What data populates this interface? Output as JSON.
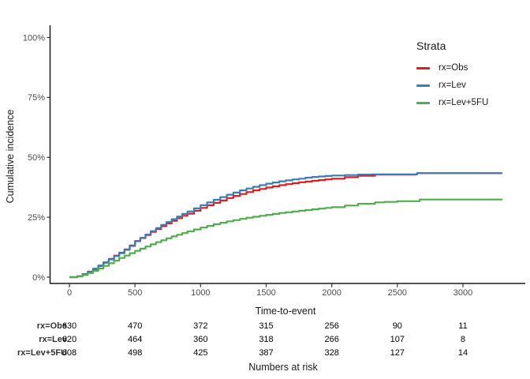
{
  "figure": {
    "y_axis_title": "Cumulative incidence",
    "x_axis_title": "Time-to-event"
  },
  "colors": {
    "red": "#E41A1C",
    "blue": "#377EB8",
    "green": "#4DAF4A",
    "axis_line": "#1a1a1a",
    "tick_mark": "#333333",
    "tick_label": "#4d4d4d",
    "risk_row_label": "#333333",
    "risk_value": "#000000"
  },
  "chart_data": {
    "type": "line",
    "subtype": "step-cumulative-incidence",
    "title": "",
    "xlabel": "Time-to-event",
    "ylabel": "Cumulative incidence",
    "xlim": [
      0,
      3400
    ],
    "ylim_percent": [
      0,
      100
    ],
    "grid": false,
    "x_ticks": [
      0,
      500,
      1000,
      1500,
      2000,
      2500,
      3000
    ],
    "y_ticks": [
      0,
      25,
      50,
      75,
      100
    ],
    "y_tick_labels": [
      "0%",
      "25%",
      "50%",
      "75%",
      "100%"
    ],
    "legend": {
      "title": "Strata",
      "position": "right-top"
    },
    "series": [
      {
        "name": "rx=Obs",
        "color": "#E41A1C",
        "points": [
          [
            0,
            0
          ],
          [
            60,
            0.4
          ],
          [
            100,
            1.3
          ],
          [
            140,
            2.3
          ],
          [
            180,
            3.5
          ],
          [
            220,
            4.8
          ],
          [
            260,
            6.2
          ],
          [
            300,
            7.6
          ],
          [
            340,
            9
          ],
          [
            380,
            10.2
          ],
          [
            420,
            11.6
          ],
          [
            460,
            13.2
          ],
          [
            500,
            15.1
          ],
          [
            540,
            16.3
          ],
          [
            580,
            17.6
          ],
          [
            620,
            18.9
          ],
          [
            660,
            20.1
          ],
          [
            700,
            21.3
          ],
          [
            740,
            22.4
          ],
          [
            780,
            23.5
          ],
          [
            820,
            24.6
          ],
          [
            860,
            25.6
          ],
          [
            900,
            26.5
          ],
          [
            950,
            27.7
          ],
          [
            1000,
            28.9
          ],
          [
            1050,
            30
          ],
          [
            1100,
            31
          ],
          [
            1150,
            32
          ],
          [
            1200,
            33
          ],
          [
            1250,
            33.9
          ],
          [
            1300,
            34.7
          ],
          [
            1350,
            35.5
          ],
          [
            1400,
            36.2
          ],
          [
            1450,
            36.8
          ],
          [
            1500,
            37.4
          ],
          [
            1550,
            37.9
          ],
          [
            1600,
            38.4
          ],
          [
            1650,
            38.8
          ],
          [
            1700,
            39.2
          ],
          [
            1750,
            39.6
          ],
          [
            1800,
            39.9
          ],
          [
            1850,
            40.2
          ],
          [
            1900,
            40.5
          ],
          [
            1950,
            40.8
          ],
          [
            2000,
            41.1
          ],
          [
            2100,
            41.7
          ],
          [
            2200,
            42.3
          ],
          [
            2330,
            42.8
          ],
          [
            2640,
            42.9
          ],
          [
            2650,
            43.4
          ],
          [
            3300,
            43.4
          ]
        ]
      },
      {
        "name": "rx=Lev",
        "color": "#377EB8",
        "points": [
          [
            0,
            0
          ],
          [
            60,
            0.4
          ],
          [
            100,
            1.2
          ],
          [
            140,
            2.2
          ],
          [
            180,
            3.3
          ],
          [
            220,
            4.6
          ],
          [
            260,
            6
          ],
          [
            300,
            7.4
          ],
          [
            340,
            8.8
          ],
          [
            380,
            10
          ],
          [
            420,
            11.4
          ],
          [
            460,
            13
          ],
          [
            500,
            15
          ],
          [
            540,
            16.4
          ],
          [
            580,
            17.8
          ],
          [
            620,
            19.2
          ],
          [
            660,
            20.5
          ],
          [
            700,
            21.8
          ],
          [
            740,
            23
          ],
          [
            780,
            24.2
          ],
          [
            820,
            25.3
          ],
          [
            860,
            26.4
          ],
          [
            900,
            27.4
          ],
          [
            950,
            28.7
          ],
          [
            1000,
            30
          ],
          [
            1050,
            31.2
          ],
          [
            1100,
            32.3
          ],
          [
            1150,
            33.4
          ],
          [
            1200,
            34.4
          ],
          [
            1250,
            35.3
          ],
          [
            1300,
            36.2
          ],
          [
            1350,
            37
          ],
          [
            1400,
            37.7
          ],
          [
            1450,
            38.4
          ],
          [
            1500,
            39
          ],
          [
            1550,
            39.5
          ],
          [
            1600,
            40
          ],
          [
            1650,
            40.4
          ],
          [
            1700,
            40.8
          ],
          [
            1750,
            41.1
          ],
          [
            1800,
            41.5
          ],
          [
            1850,
            41.8
          ],
          [
            1900,
            42
          ],
          [
            1950,
            42.2
          ],
          [
            2000,
            42.4
          ],
          [
            2100,
            42.6
          ],
          [
            2200,
            42.8
          ],
          [
            2300,
            42.9
          ],
          [
            2640,
            42.9
          ],
          [
            2650,
            43.4
          ],
          [
            3300,
            43.4
          ]
        ]
      },
      {
        "name": "rx=Lev+5FU",
        "color": "#4DAF4A",
        "points": [
          [
            0,
            0
          ],
          [
            60,
            0.3
          ],
          [
            100,
            0.9
          ],
          [
            140,
            1.7
          ],
          [
            180,
            2.6
          ],
          [
            220,
            3.6
          ],
          [
            260,
            4.7
          ],
          [
            300,
            5.8
          ],
          [
            340,
            6.9
          ],
          [
            380,
            8
          ],
          [
            420,
            9
          ],
          [
            460,
            10
          ],
          [
            500,
            11
          ],
          [
            540,
            11.9
          ],
          [
            580,
            12.8
          ],
          [
            620,
            13.7
          ],
          [
            660,
            14.6
          ],
          [
            700,
            15.4
          ],
          [
            740,
            16.2
          ],
          [
            780,
            17
          ],
          [
            820,
            17.7
          ],
          [
            860,
            18.4
          ],
          [
            900,
            19.1
          ],
          [
            950,
            19.9
          ],
          [
            1000,
            20.7
          ],
          [
            1050,
            21.4
          ],
          [
            1100,
            22.1
          ],
          [
            1150,
            22.7
          ],
          [
            1200,
            23.3
          ],
          [
            1250,
            23.8
          ],
          [
            1300,
            24.3
          ],
          [
            1350,
            24.8
          ],
          [
            1400,
            25.2
          ],
          [
            1450,
            25.6
          ],
          [
            1500,
            26
          ],
          [
            1550,
            26.4
          ],
          [
            1600,
            26.8
          ],
          [
            1650,
            27.1
          ],
          [
            1700,
            27.4
          ],
          [
            1750,
            27.7
          ],
          [
            1800,
            28
          ],
          [
            1850,
            28.3
          ],
          [
            1900,
            28.6
          ],
          [
            1950,
            28.9
          ],
          [
            2000,
            29.2
          ],
          [
            2100,
            29.9
          ],
          [
            2200,
            30.6
          ],
          [
            2330,
            31.2
          ],
          [
            2400,
            31.4
          ],
          [
            2500,
            31.7
          ],
          [
            2670,
            32.4
          ],
          [
            3300,
            32.4
          ]
        ]
      }
    ],
    "numbers_at_risk": {
      "caption": "Numbers at risk",
      "time_points": [
        0,
        500,
        1000,
        1500,
        2000,
        2500,
        3000
      ],
      "rows": [
        {
          "label": "rx=Obs",
          "values": [
            630,
            470,
            372,
            315,
            256,
            90,
            11
          ]
        },
        {
          "label": "rx=Lev",
          "values": [
            620,
            464,
            360,
            318,
            266,
            107,
            8
          ]
        },
        {
          "label": "rx=Lev+5FU",
          "values": [
            608,
            498,
            425,
            387,
            328,
            127,
            14
          ]
        }
      ]
    }
  }
}
